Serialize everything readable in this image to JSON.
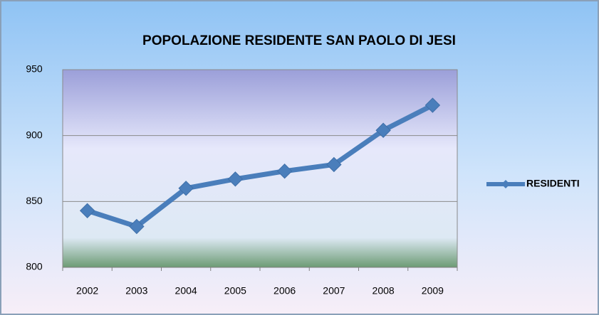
{
  "chart_data": {
    "type": "line",
    "title": "POPOLAZIONE RESIDENTE SAN PAOLO DI JESI",
    "categories": [
      "2002",
      "2003",
      "2004",
      "2005",
      "2006",
      "2007",
      "2008",
      "2009"
    ],
    "series": [
      {
        "name": "RESIDENTI",
        "color": "#4a7ebb",
        "values": [
          843,
          831,
          860,
          867,
          873,
          878,
          904,
          923
        ]
      }
    ],
    "ylim": [
      800,
      950
    ],
    "yticks": [
      800,
      850,
      900,
      950
    ],
    "grid": true,
    "legend": "right"
  }
}
